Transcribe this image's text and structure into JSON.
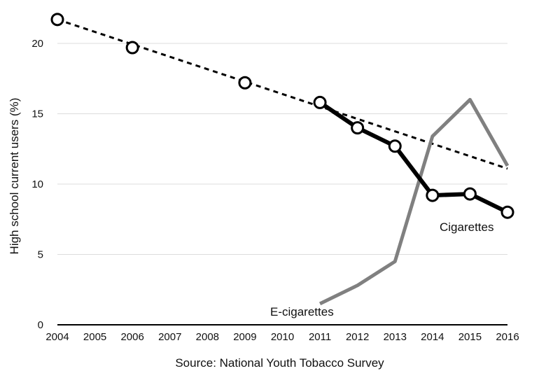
{
  "chart_data": {
    "type": "line",
    "title": "",
    "xlabel": "Source: National Youth Tobacco Survey",
    "ylabel": "High school current users (%)",
    "xlim": [
      2004,
      2016
    ],
    "ylim": [
      0,
      22
    ],
    "x_ticks": [
      "2004",
      "2005",
      "2006",
      "2007",
      "2008",
      "2009",
      "2010",
      "2011",
      "2012",
      "2013",
      "2014",
      "2015",
      "2016"
    ],
    "y_ticks": [
      "0",
      "5",
      "10",
      "15",
      "20"
    ],
    "grid": true,
    "series": [
      {
        "name": "Cigarettes",
        "color": "#000000",
        "markers": "open-circle",
        "points": [
          {
            "x": 2004,
            "y": 21.7
          },
          {
            "x": 2006,
            "y": 19.7
          },
          {
            "x": 2009,
            "y": 17.2
          },
          {
            "x": 2011,
            "y": 15.8
          },
          {
            "x": 2012,
            "y": 14.0
          },
          {
            "x": 2013,
            "y": 12.7
          },
          {
            "x": 2014,
            "y": 9.2
          },
          {
            "x": 2015,
            "y": 9.3
          },
          {
            "x": 2016,
            "y": 8.0
          }
        ]
      },
      {
        "name": "E-cigarettes",
        "color": "#808080",
        "markers": "none",
        "points": [
          {
            "x": 2011,
            "y": 1.5
          },
          {
            "x": 2012,
            "y": 2.8
          },
          {
            "x": 2013,
            "y": 4.5
          },
          {
            "x": 2014,
            "y": 13.4
          },
          {
            "x": 2015,
            "y": 16.0
          },
          {
            "x": 2016,
            "y": 11.3
          }
        ]
      }
    ],
    "trendline": {
      "style": "dashed",
      "color": "#000000",
      "from": {
        "x": 2004,
        "y": 21.7
      },
      "to": {
        "x": 2016,
        "y": 11.1
      }
    }
  }
}
